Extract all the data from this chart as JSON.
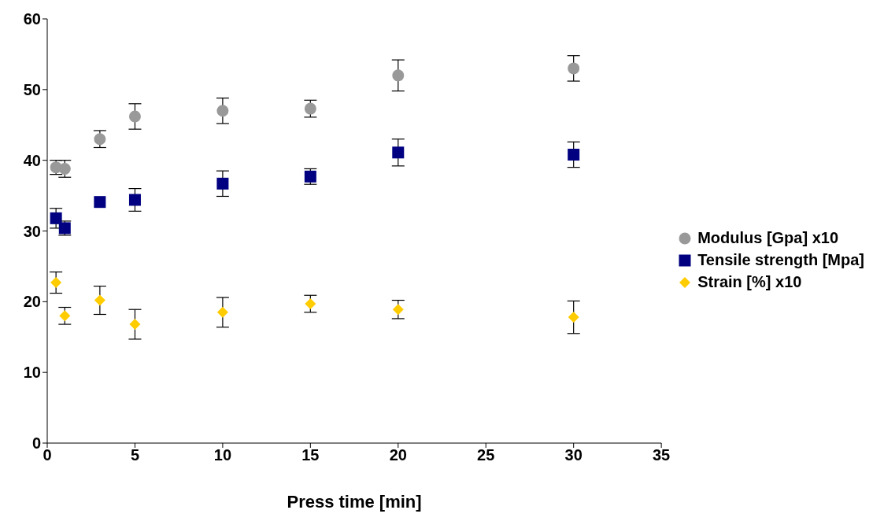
{
  "chart_data": {
    "type": "scatter",
    "xlabel": "Press time [min]",
    "x": [
      0.5,
      1,
      3,
      5,
      10,
      15,
      20,
      30
    ],
    "series": [
      {
        "name": "Modulus [Gpa] x10",
        "color": "#999999",
        "marker": "circle",
        "values": [
          39,
          38.8,
          43,
          46.2,
          47,
          47.3,
          52,
          53
        ],
        "errors": [
          1,
          1.2,
          1.2,
          1.8,
          1.8,
          1.2,
          2.2,
          1.8
        ]
      },
      {
        "name": "Tensile strength [Mpa]",
        "color": "#000080",
        "marker": "square",
        "values": [
          31.8,
          30.4,
          34.1,
          34.4,
          36.7,
          37.7,
          41.1,
          40.8
        ],
        "errors": [
          1.4,
          1,
          null,
          1.6,
          1.8,
          1.1,
          1.9,
          1.8
        ]
      },
      {
        "name": "Strain [%] x10",
        "color": "#ffcc00",
        "marker": "diamond",
        "values": [
          22.7,
          18,
          20.2,
          16.8,
          18.5,
          19.7,
          18.9,
          17.8
        ],
        "errors": [
          1.5,
          1.2,
          2,
          2.1,
          2.1,
          1.2,
          1.3,
          2.3
        ]
      }
    ],
    "xlim": [
      0,
      35
    ],
    "xticks": [
      0,
      5,
      10,
      15,
      20,
      25,
      30,
      35
    ],
    "ylim": [
      0,
      60
    ],
    "yticks": [
      0,
      10,
      20,
      30,
      40,
      50,
      60
    ],
    "grid": false,
    "legend": "right"
  }
}
